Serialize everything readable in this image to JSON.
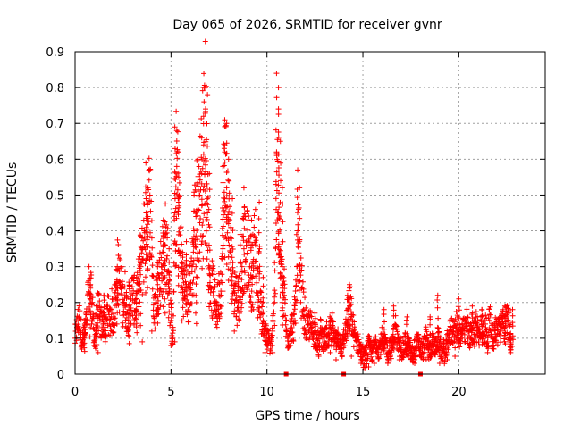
{
  "chart_data": {
    "type": "scatter",
    "title": "Day 065 of 2026, SRMTID for receiver gvnr",
    "xlabel": "GPS time / hours",
    "ylabel": "SRMTID / TECUs",
    "xlim": [
      0,
      24.5
    ],
    "ylim": [
      0,
      0.9
    ],
    "xticks": [
      0,
      5,
      10,
      15,
      20
    ],
    "xtick_labels": [
      "0",
      "5",
      "10",
      "15",
      "20"
    ],
    "yticks": [
      0,
      0.1,
      0.2,
      0.3,
      0.4,
      0.5,
      0.6,
      0.7,
      0.8,
      0.9
    ],
    "ytick_labels": [
      "0",
      "0.1",
      "0.2",
      "0.3",
      "0.4",
      "0.5",
      "0.6",
      "0.7",
      "0.8",
      "0.9"
    ],
    "grid": true,
    "marker": "plus",
    "series_color": "#ff0000",
    "series": [
      {
        "name": "SRMTID",
        "points": [
          [
            0.0,
            0.1
          ],
          [
            0.1,
            0.13
          ],
          [
            0.2,
            0.16
          ],
          [
            0.3,
            0.12
          ],
          [
            0.4,
            0.09
          ],
          [
            0.5,
            0.11
          ],
          [
            0.6,
            0.14
          ],
          [
            0.7,
            0.23
          ],
          [
            0.8,
            0.24
          ],
          [
            0.9,
            0.2
          ],
          [
            1.0,
            0.08
          ],
          [
            1.1,
            0.12
          ],
          [
            1.2,
            0.18
          ],
          [
            1.3,
            0.15
          ],
          [
            1.4,
            0.13
          ],
          [
            1.5,
            0.17
          ],
          [
            1.6,
            0.11
          ],
          [
            1.7,
            0.19
          ],
          [
            1.8,
            0.14
          ],
          [
            1.9,
            0.18
          ],
          [
            2.0,
            0.16
          ],
          [
            2.1,
            0.21
          ],
          [
            2.2,
            0.29
          ],
          [
            2.3,
            0.26
          ],
          [
            2.4,
            0.24
          ],
          [
            2.5,
            0.2
          ],
          [
            2.6,
            0.22
          ],
          [
            2.7,
            0.17
          ],
          [
            2.8,
            0.19
          ],
          [
            2.9,
            0.21
          ],
          [
            3.0,
            0.22
          ],
          [
            3.1,
            0.2
          ],
          [
            3.2,
            0.18
          ],
          [
            3.3,
            0.25
          ],
          [
            3.4,
            0.3
          ],
          [
            3.5,
            0.32
          ],
          [
            3.6,
            0.4
          ],
          [
            3.7,
            0.45
          ],
          [
            3.8,
            0.44
          ],
          [
            3.9,
            0.5
          ],
          [
            4.0,
            0.38
          ],
          [
            4.1,
            0.16
          ],
          [
            4.2,
            0.2
          ],
          [
            4.3,
            0.25
          ],
          [
            4.4,
            0.27
          ],
          [
            4.5,
            0.3
          ],
          [
            4.6,
            0.34
          ],
          [
            4.7,
            0.36
          ],
          [
            4.8,
            0.33
          ],
          [
            4.9,
            0.26
          ],
          [
            5.0,
            0.15
          ],
          [
            5.1,
            0.1
          ],
          [
            5.2,
            0.45
          ],
          [
            5.3,
            0.58
          ],
          [
            5.4,
            0.48
          ],
          [
            5.5,
            0.33
          ],
          [
            5.6,
            0.28
          ],
          [
            5.7,
            0.22
          ],
          [
            5.8,
            0.25
          ],
          [
            5.9,
            0.2
          ],
          [
            6.0,
            0.24
          ],
          [
            6.1,
            0.3
          ],
          [
            6.2,
            0.4
          ],
          [
            6.3,
            0.44
          ],
          [
            6.4,
            0.46
          ],
          [
            6.5,
            0.5
          ],
          [
            6.6,
            0.56
          ],
          [
            6.7,
            0.64
          ],
          [
            6.8,
            0.74
          ],
          [
            6.9,
            0.45
          ],
          [
            7.0,
            0.28
          ],
          [
            7.1,
            0.24
          ],
          [
            7.2,
            0.23
          ],
          [
            7.3,
            0.2
          ],
          [
            7.4,
            0.18
          ],
          [
            7.5,
            0.22
          ],
          [
            7.6,
            0.26
          ],
          [
            7.7,
            0.35
          ],
          [
            7.8,
            0.62
          ],
          [
            7.9,
            0.52
          ],
          [
            8.0,
            0.42
          ],
          [
            8.1,
            0.34
          ],
          [
            8.2,
            0.28
          ],
          [
            8.3,
            0.25
          ],
          [
            8.4,
            0.22
          ],
          [
            8.5,
            0.2
          ],
          [
            8.6,
            0.24
          ],
          [
            8.7,
            0.3
          ],
          [
            8.8,
            0.35
          ],
          [
            8.9,
            0.32
          ],
          [
            9.0,
            0.36
          ],
          [
            9.1,
            0.3
          ],
          [
            9.2,
            0.27
          ],
          [
            9.3,
            0.32
          ],
          [
            9.4,
            0.38
          ],
          [
            9.5,
            0.22
          ],
          [
            9.6,
            0.28
          ],
          [
            9.7,
            0.17
          ],
          [
            9.8,
            0.15
          ],
          [
            9.9,
            0.11
          ],
          [
            10.0,
            0.1
          ],
          [
            10.1,
            0.09
          ],
          [
            10.2,
            0.08
          ],
          [
            10.3,
            0.12
          ],
          [
            10.4,
            0.2
          ],
          [
            10.5,
            0.62
          ],
          [
            10.6,
            0.45
          ],
          [
            10.7,
            0.28
          ],
          [
            10.8,
            0.24
          ],
          [
            10.9,
            0.22
          ],
          [
            11.0,
            0.12
          ],
          [
            11.1,
            0.1
          ],
          [
            11.2,
            0.11
          ],
          [
            11.3,
            0.13
          ],
          [
            11.4,
            0.14
          ],
          [
            11.5,
            0.2
          ],
          [
            11.6,
            0.4
          ],
          [
            11.7,
            0.26
          ],
          [
            11.8,
            0.24
          ],
          [
            11.9,
            0.18
          ],
          [
            12.0,
            0.15
          ],
          [
            12.1,
            0.12
          ],
          [
            12.2,
            0.14
          ],
          [
            12.3,
            0.13
          ],
          [
            12.4,
            0.11
          ],
          [
            12.5,
            0.12
          ],
          [
            12.6,
            0.1
          ],
          [
            12.7,
            0.08
          ],
          [
            12.8,
            0.12
          ],
          [
            12.9,
            0.1
          ],
          [
            13.0,
            0.09
          ],
          [
            13.1,
            0.11
          ],
          [
            13.2,
            0.08
          ],
          [
            13.3,
            0.13
          ],
          [
            13.4,
            0.1
          ],
          [
            13.5,
            0.12
          ],
          [
            13.6,
            0.08
          ],
          [
            13.7,
            0.11
          ],
          [
            13.8,
            0.09
          ],
          [
            13.9,
            0.07
          ],
          [
            14.0,
            0.1
          ],
          [
            14.1,
            0.12
          ],
          [
            14.2,
            0.14
          ],
          [
            14.3,
            0.19
          ],
          [
            14.4,
            0.16
          ],
          [
            14.5,
            0.12
          ],
          [
            14.6,
            0.1
          ],
          [
            14.7,
            0.09
          ],
          [
            14.8,
            0.08
          ],
          [
            14.9,
            0.06
          ],
          [
            15.0,
            0.05
          ],
          [
            15.1,
            0.04
          ],
          [
            15.2,
            0.06
          ],
          [
            15.3,
            0.08
          ],
          [
            15.4,
            0.07
          ],
          [
            15.5,
            0.06
          ],
          [
            15.6,
            0.08
          ],
          [
            15.7,
            0.09
          ],
          [
            15.8,
            0.07
          ],
          [
            15.9,
            0.08
          ],
          [
            16.0,
            0.1
          ],
          [
            16.1,
            0.07
          ],
          [
            16.2,
            0.09
          ],
          [
            16.3,
            0.06
          ],
          [
            16.4,
            0.08
          ],
          [
            16.5,
            0.07
          ],
          [
            16.6,
            0.1
          ],
          [
            16.7,
            0.13
          ],
          [
            16.8,
            0.09
          ],
          [
            16.9,
            0.07
          ],
          [
            17.0,
            0.08
          ],
          [
            17.1,
            0.06
          ],
          [
            17.2,
            0.09
          ],
          [
            17.3,
            0.07
          ],
          [
            17.4,
            0.08
          ],
          [
            17.5,
            0.06
          ],
          [
            17.6,
            0.05
          ],
          [
            17.7,
            0.07
          ],
          [
            17.8,
            0.08
          ],
          [
            17.9,
            0.09
          ],
          [
            18.0,
            0.07
          ],
          [
            18.1,
            0.06
          ],
          [
            18.2,
            0.08
          ],
          [
            18.3,
            0.1
          ],
          [
            18.4,
            0.07
          ],
          [
            18.5,
            0.06
          ],
          [
            18.6,
            0.09
          ],
          [
            18.7,
            0.08
          ],
          [
            18.8,
            0.07
          ],
          [
            18.9,
            0.1
          ],
          [
            19.0,
            0.08
          ],
          [
            19.1,
            0.06
          ],
          [
            19.2,
            0.07
          ],
          [
            19.3,
            0.05
          ],
          [
            19.4,
            0.09
          ],
          [
            19.5,
            0.11
          ],
          [
            19.6,
            0.12
          ],
          [
            19.7,
            0.13
          ],
          [
            19.8,
            0.11
          ],
          [
            19.9,
            0.14
          ],
          [
            20.0,
            0.12
          ],
          [
            20.1,
            0.1
          ],
          [
            20.2,
            0.13
          ],
          [
            20.3,
            0.11
          ],
          [
            20.4,
            0.14
          ],
          [
            20.5,
            0.12
          ],
          [
            20.6,
            0.1
          ],
          [
            20.7,
            0.13
          ],
          [
            20.8,
            0.11
          ],
          [
            20.9,
            0.14
          ],
          [
            21.0,
            0.12
          ],
          [
            21.1,
            0.1
          ],
          [
            21.2,
            0.14
          ],
          [
            21.3,
            0.11
          ],
          [
            21.4,
            0.13
          ],
          [
            21.5,
            0.09
          ],
          [
            21.6,
            0.15
          ],
          [
            21.7,
            0.12
          ],
          [
            21.8,
            0.1
          ],
          [
            21.9,
            0.13
          ],
          [
            22.0,
            0.11
          ],
          [
            22.1,
            0.14
          ],
          [
            22.2,
            0.12
          ],
          [
            22.3,
            0.16
          ],
          [
            22.4,
            0.13
          ],
          [
            22.5,
            0.15
          ],
          [
            22.6,
            0.14
          ],
          [
            22.7,
            0.1
          ]
        ],
        "spikes": [
          [
            0.5,
            0.15
          ],
          [
            0.8,
            0.25
          ],
          [
            1.1,
            0.19
          ],
          [
            1.5,
            0.22
          ],
          [
            2.2,
            0.3
          ],
          [
            2.8,
            0.18
          ],
          [
            3.2,
            0.27
          ],
          [
            3.7,
            0.49
          ],
          [
            3.8,
            0.52
          ],
          [
            4.3,
            0.3
          ],
          [
            4.7,
            0.39
          ],
          [
            5.2,
            0.69
          ],
          [
            5.3,
            0.68
          ],
          [
            5.4,
            0.62
          ],
          [
            5.4,
            0.55
          ],
          [
            5.8,
            0.37
          ],
          [
            6.2,
            0.5
          ],
          [
            6.4,
            0.6
          ],
          [
            6.6,
            0.66
          ],
          [
            6.8,
            0.8
          ],
          [
            6.9,
            0.78
          ],
          [
            7.0,
            0.56
          ],
          [
            7.8,
            0.71
          ],
          [
            7.9,
            0.7
          ],
          [
            8.0,
            0.6
          ],
          [
            8.2,
            0.49
          ],
          [
            8.6,
            0.39
          ],
          [
            8.8,
            0.52
          ],
          [
            9.2,
            0.43
          ],
          [
            9.6,
            0.48
          ],
          [
            9.8,
            0.27
          ],
          [
            10.5,
            0.84
          ],
          [
            10.6,
            0.8
          ],
          [
            10.6,
            0.74
          ],
          [
            10.7,
            0.65
          ],
          [
            10.8,
            0.3
          ],
          [
            11.6,
            0.57
          ],
          [
            11.7,
            0.52
          ],
          [
            12.5,
            0.17
          ],
          [
            13.4,
            0.17
          ],
          [
            14.3,
            0.25
          ],
          [
            14.2,
            0.22
          ],
          [
            16.1,
            0.18
          ],
          [
            16.6,
            0.19
          ],
          [
            17.3,
            0.16
          ],
          [
            18.5,
            0.16
          ],
          [
            18.9,
            0.22
          ],
          [
            20.0,
            0.21
          ],
          [
            20.7,
            0.19
          ],
          [
            21.2,
            0.18
          ],
          [
            22.4,
            0.19
          ],
          [
            22.8,
            0.18
          ],
          [
            10.8,
            0.52
          ],
          [
            7.7,
            0.58
          ],
          [
            6.7,
            0.72
          ],
          [
            6.3,
            0.3
          ],
          [
            5.6,
            0.34
          ],
          [
            4.9,
            0.35
          ],
          [
            4.6,
            0.43
          ],
          [
            3.4,
            0.31
          ]
        ],
        "lows": [
          [
            1.2,
            0.06
          ],
          [
            3.5,
            0.09
          ],
          [
            4.0,
            0.12
          ],
          [
            5.0,
            0.08
          ],
          [
            5.2,
            0.09
          ],
          [
            7.4,
            0.16
          ],
          [
            8.3,
            0.12
          ],
          [
            9.3,
            0.18
          ],
          [
            9.9,
            0.06
          ],
          [
            10.2,
            0.07
          ],
          [
            10.3,
            0.06
          ],
          [
            12.7,
            0.05
          ],
          [
            13.3,
            0.06
          ],
          [
            13.6,
            0.04
          ],
          [
            14.4,
            0.05
          ],
          [
            14.9,
            0.03
          ],
          [
            15.3,
            0.02
          ],
          [
            15.6,
            0.03
          ],
          [
            16.3,
            0.03
          ],
          [
            16.9,
            0.04
          ],
          [
            17.7,
            0.03
          ],
          [
            18.3,
            0.04
          ],
          [
            19.0,
            0.03
          ],
          [
            19.4,
            0.04
          ],
          [
            19.8,
            0.05
          ],
          [
            20.6,
            0.08
          ],
          [
            21.5,
            0.06
          ],
          [
            22.7,
            0.06
          ]
        ],
        "markers_at_zero": [
          11.0,
          14.0,
          18.0
        ]
      }
    ]
  }
}
